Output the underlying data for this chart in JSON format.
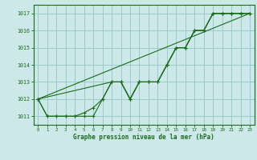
{
  "title": "Graphe pression niveau de la mer (hPa)",
  "bg_color": "#cce8e8",
  "grid_color": "#99cccc",
  "line_color": "#1a6b1a",
  "xlim": [
    -0.5,
    23.5
  ],
  "ylim": [
    1010.5,
    1017.5
  ],
  "yticks": [
    1011,
    1012,
    1013,
    1014,
    1015,
    1016,
    1017
  ],
  "xticks": [
    0,
    1,
    2,
    3,
    4,
    5,
    6,
    7,
    8,
    9,
    10,
    11,
    12,
    13,
    14,
    15,
    16,
    17,
    18,
    19,
    20,
    21,
    22,
    23
  ],
  "trend_x": [
    0,
    23
  ],
  "trend_y": [
    1012.0,
    1017.0
  ],
  "series_step_x": [
    0,
    1,
    2,
    3,
    4,
    5,
    6,
    7,
    8,
    9,
    10,
    11,
    12,
    13,
    14,
    15,
    16,
    17,
    18,
    19,
    20,
    21,
    22,
    23
  ],
  "series_step_y": [
    1012.0,
    1011.0,
    1011.0,
    1011.0,
    1011.0,
    1011.0,
    1011.0,
    1012.0,
    1013.0,
    1013.0,
    1012.0,
    1013.0,
    1013.0,
    1013.0,
    1014.0,
    1015.0,
    1015.0,
    1016.0,
    1016.0,
    1017.0,
    1017.0,
    1017.0,
    1017.0,
    1017.0
  ],
  "series_dip_x": [
    0,
    8,
    9,
    10,
    11,
    12,
    13,
    14,
    15,
    16,
    17,
    18,
    19,
    20,
    21,
    22,
    23
  ],
  "series_dip_y": [
    1012.0,
    1013.0,
    1013.0,
    1012.0,
    1013.0,
    1013.0,
    1013.0,
    1014.0,
    1015.0,
    1015.0,
    1016.0,
    1016.0,
    1017.0,
    1017.0,
    1017.0,
    1017.0,
    1017.0
  ],
  "series_mid_x": [
    0,
    1,
    2,
    3,
    4,
    5,
    6,
    7,
    8,
    9,
    10,
    11,
    12,
    13,
    14,
    15,
    16,
    17,
    18,
    19,
    20,
    21,
    22,
    23
  ],
  "series_mid_y": [
    1012.0,
    1011.0,
    1011.0,
    1011.0,
    1011.0,
    1011.2,
    1011.5,
    1012.0,
    1013.0,
    1013.0,
    1012.0,
    1013.0,
    1013.0,
    1013.0,
    1014.0,
    1015.0,
    1015.0,
    1016.0,
    1016.0,
    1017.0,
    1017.0,
    1017.0,
    1017.0,
    1017.0
  ]
}
